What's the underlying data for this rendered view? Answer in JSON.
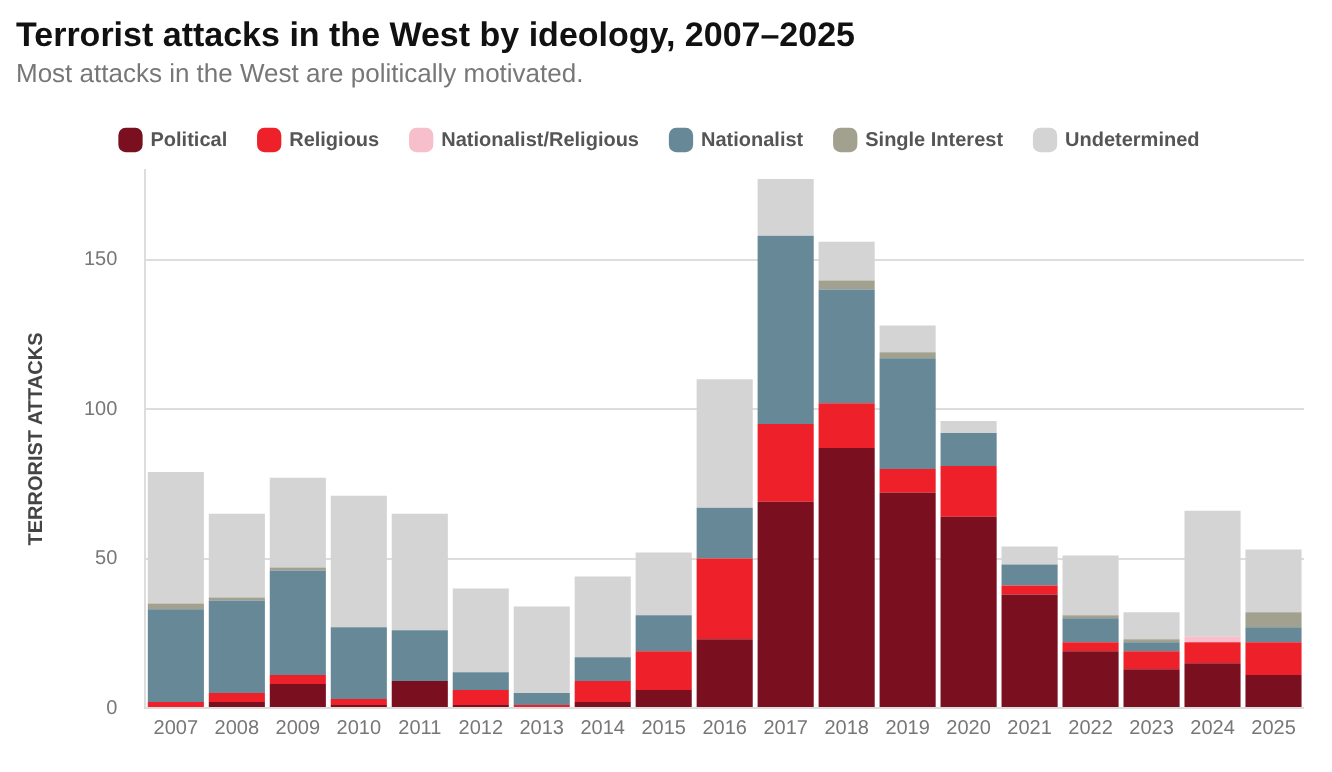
{
  "chart_data": {
    "type": "bar",
    "title": "Terrorist attacks in the West by ideology, 2007–2025",
    "subtitle": "Most attacks in the West are politically motivated.",
    "ylabel": "TERRORIST ATTACKS",
    "categories": [
      "2007",
      "2008",
      "2009",
      "2010",
      "2011",
      "2012",
      "2013",
      "2014",
      "2015",
      "2016",
      "2017",
      "2018",
      "2019",
      "2020",
      "2021",
      "2022",
      "2023",
      "2024",
      "2025"
    ],
    "stacked": true,
    "ylim": [
      0,
      180
    ],
    "yticks": [
      0,
      50,
      100,
      150
    ],
    "grid": "y",
    "legend": "top",
    "series": [
      {
        "name": "Political",
        "color": "#7a0f1f",
        "values": [
          0,
          2,
          8,
          1,
          9,
          1,
          0,
          2,
          6,
          23,
          69,
          87,
          72,
          64,
          38,
          19,
          13,
          15,
          11
        ]
      },
      {
        "name": "Religious",
        "color": "#ee2029",
        "values": [
          2,
          3,
          3,
          2,
          0,
          5,
          1,
          7,
          13,
          27,
          26,
          15,
          8,
          17,
          3,
          3,
          6,
          7,
          11
        ]
      },
      {
        "name": "Nationalist/Religious",
        "color": "#f7bfcb",
        "values": [
          0,
          0,
          0,
          0,
          0,
          0,
          0,
          0,
          0,
          0,
          0,
          0,
          0,
          0,
          0,
          0,
          0,
          2,
          0
        ]
      },
      {
        "name": "Nationalist",
        "color": "#668897",
        "values": [
          31,
          31,
          35,
          24,
          17,
          6,
          4,
          8,
          12,
          17,
          63,
          38,
          37,
          11,
          7,
          8,
          3,
          0,
          5
        ]
      },
      {
        "name": "Single Interest",
        "color": "#a2a08e",
        "values": [
          2,
          1,
          1,
          0,
          0,
          0,
          0,
          0,
          0,
          0,
          0,
          3,
          2,
          0,
          0,
          1,
          1,
          0,
          5
        ]
      },
      {
        "name": "Undetermined",
        "color": "#d4d4d4",
        "values": [
          44,
          28,
          30,
          44,
          39,
          28,
          29,
          27,
          21,
          43,
          19,
          13,
          9,
          4,
          6,
          20,
          9,
          42,
          21
        ]
      }
    ]
  }
}
